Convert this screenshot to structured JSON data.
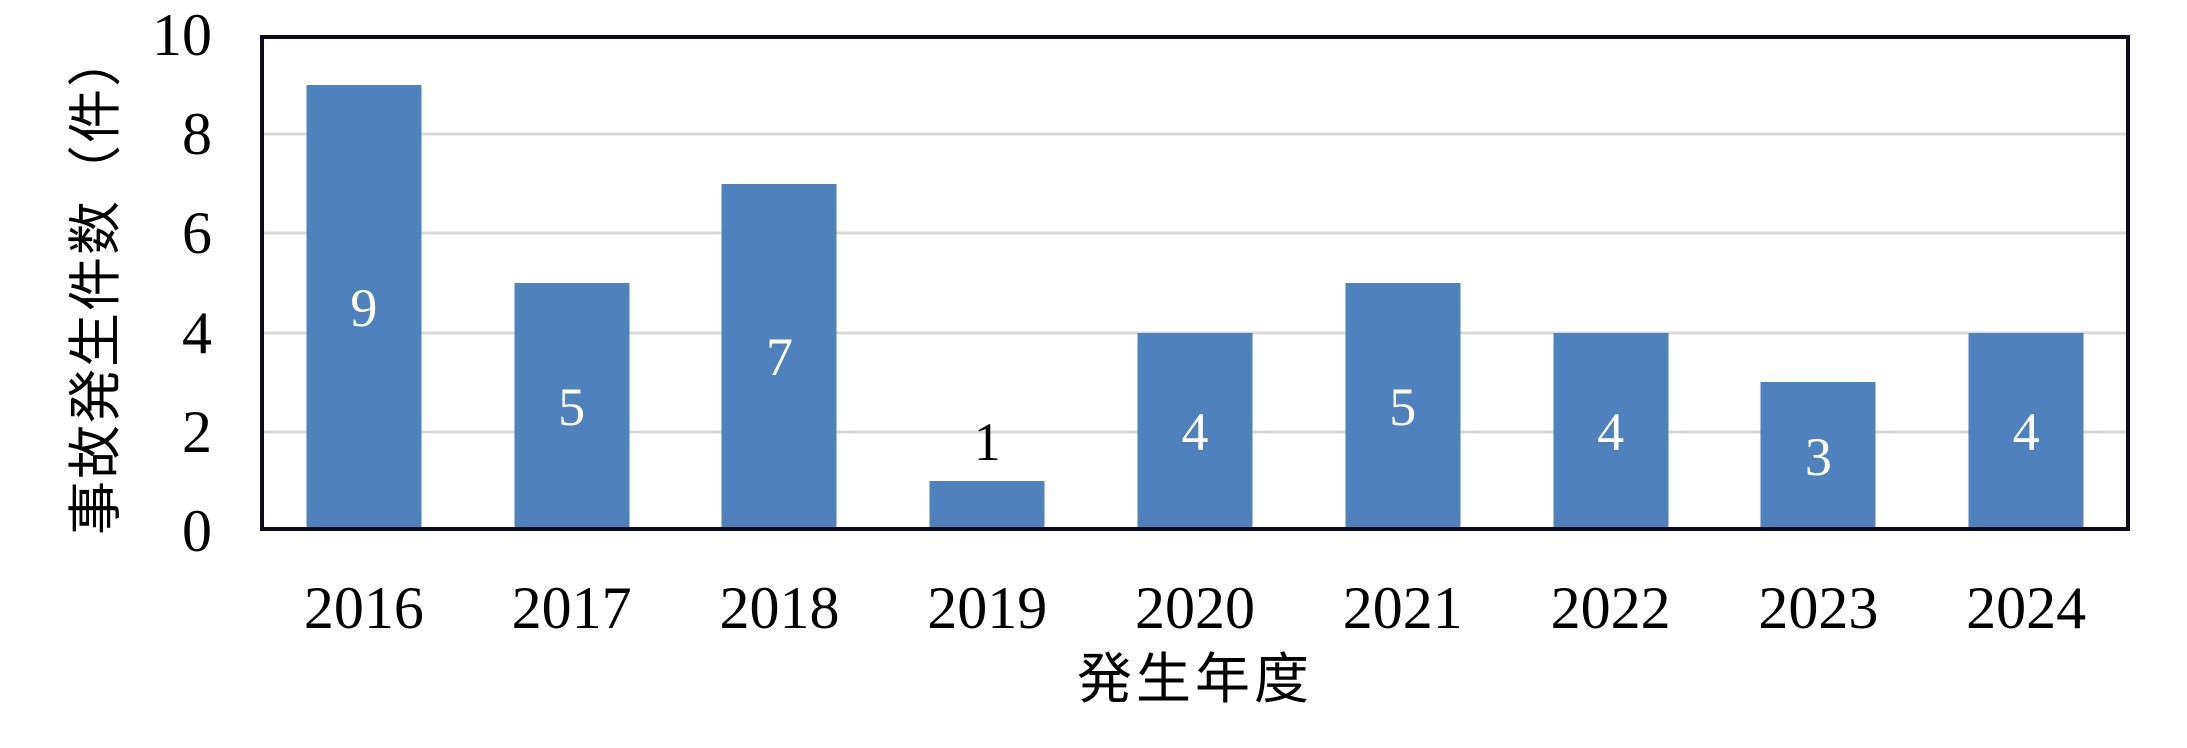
{
  "chart_data": {
    "type": "bar",
    "title": "",
    "categories": [
      "2016",
      "2017",
      "2018",
      "2019",
      "2020",
      "2021",
      "2022",
      "2023",
      "2024"
    ],
    "values": [
      9,
      5,
      7,
      1,
      4,
      5,
      4,
      3,
      4
    ],
    "data_labels": [
      "9",
      "5",
      "7",
      "1",
      "4",
      "5",
      "4",
      "3",
      "4"
    ],
    "label_positions": [
      "center",
      "center",
      "center",
      "above",
      "center",
      "center",
      "center",
      "center",
      "center"
    ],
    "xlabel": "発生年度",
    "ylabel": "事故発生件数（件）",
    "ylim": [
      0,
      10
    ],
    "yticks": [
      0,
      2,
      4,
      6,
      8,
      10
    ],
    "grid": "horizontal",
    "legend": "none",
    "colors": {
      "bar": "#4F81BD",
      "data_label_inside": "#FFFFFF",
      "data_label_outside": "#000000",
      "gridline": "#D9D9D9",
      "axis_border": "#0D0D1A",
      "text": "#000000",
      "background": "#FFFFFF"
    }
  }
}
